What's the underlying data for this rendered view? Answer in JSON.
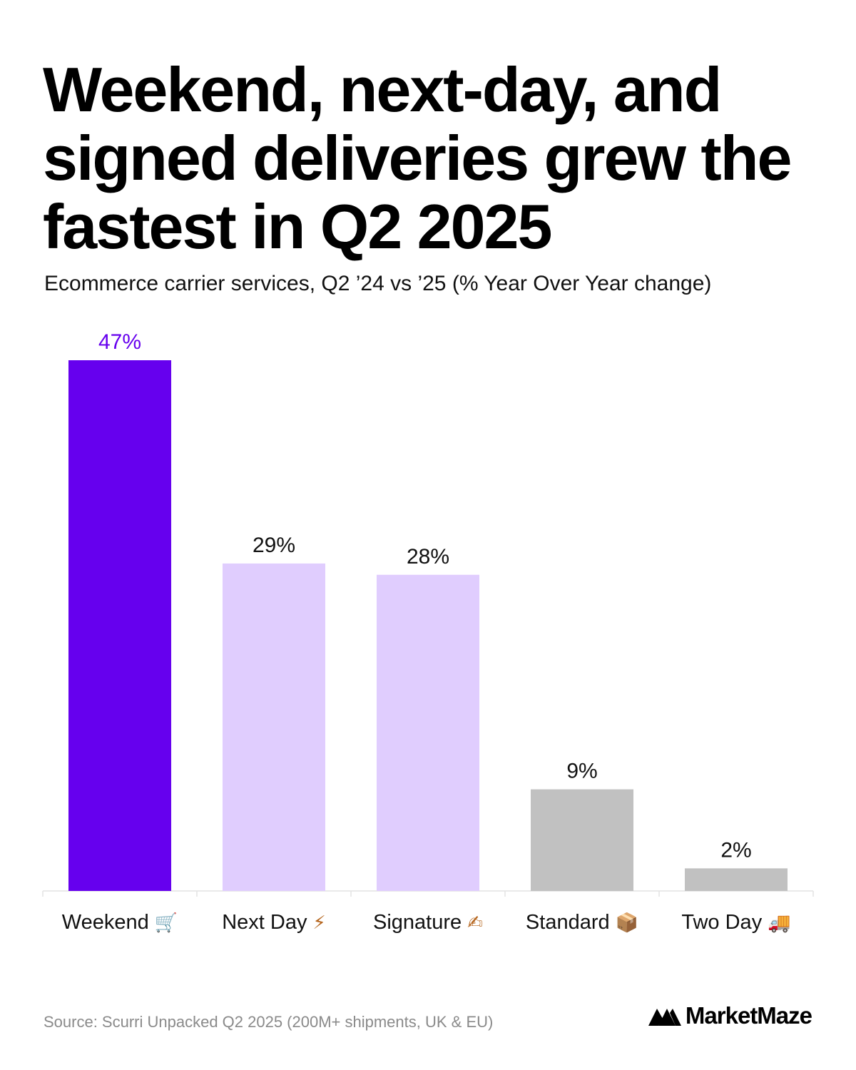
{
  "title": "Weekend, next-day, and signed deliveries grew the fastest in Q2 2025",
  "subtitle": "Ecommerce carrier services, Q2 ’24 vs ’25 (% Year Over Year change)",
  "footer": {
    "source": "Source: Scurri Unpacked Q2 2025 (200M+ shipments, UK & EU)",
    "brand": "MarketMaze"
  },
  "colors": {
    "highlight": "#6600ee",
    "secondary": "#e0cdfe",
    "neutral": "#c1c1c1",
    "highlight_label": "#6600ee",
    "label": "#111111",
    "baseline": "#e3e3e3"
  },
  "chart_data": {
    "type": "bar",
    "categories": [
      "Weekend",
      "Next Day",
      "Signature",
      "Standard",
      "Two Day"
    ],
    "category_icons": [
      "🛒",
      "⚡",
      "✍",
      "📦",
      "🚚"
    ],
    "values": [
      47,
      29,
      28,
      9,
      2
    ],
    "value_labels": [
      "47%",
      "29%",
      "28%",
      "9%",
      "2%"
    ],
    "bar_color_groups": [
      "highlight",
      "secondary",
      "secondary",
      "neutral",
      "neutral"
    ],
    "ylim": [
      0,
      47
    ],
    "grid": false,
    "legend": "none"
  }
}
